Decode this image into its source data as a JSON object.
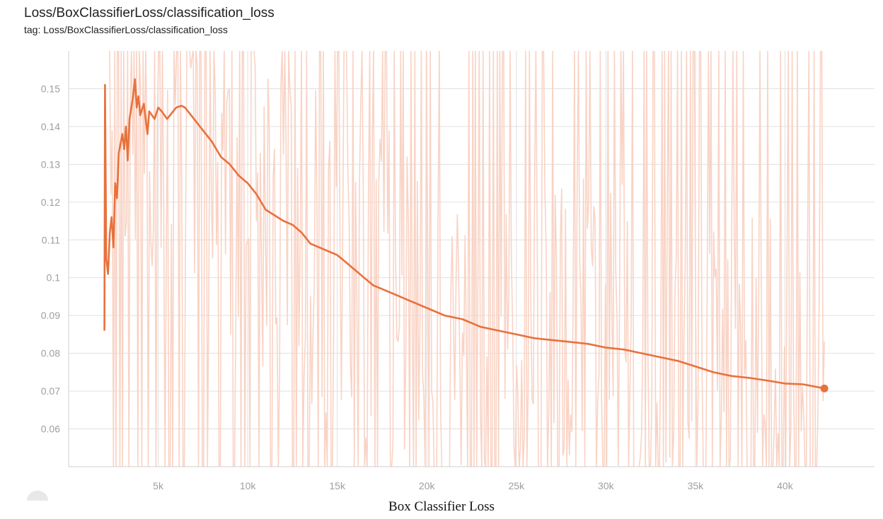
{
  "header": {
    "title": "Loss/BoxClassifierLoss/classification_loss",
    "tag": "tag: Loss/BoxClassifierLoss/classification_loss"
  },
  "caption": "Box Classifier Loss",
  "colors": {
    "smoothed": "#e8713c",
    "raw": "#f9d3c5",
    "grid": "#e0e0e0",
    "tick_text": "#9e9e9e"
  },
  "chart_data": {
    "type": "line",
    "title": "Loss/BoxClassifierLoss/classification_loss",
    "xlabel": "",
    "ylabel": "",
    "xlim": [
      0,
      45000
    ],
    "ylim": [
      0.05,
      0.16
    ],
    "grid": true,
    "x_ticks": [
      5000,
      10000,
      15000,
      20000,
      25000,
      30000,
      35000,
      40000
    ],
    "x_tick_labels": [
      "5k",
      "10k",
      "15k",
      "20k",
      "25k",
      "30k",
      "35k",
      "40k"
    ],
    "y_ticks": [
      0.06,
      0.07,
      0.08,
      0.09,
      0.1,
      0.11,
      0.12,
      0.13,
      0.14,
      0.15
    ],
    "y_tick_labels": [
      "0.06",
      "0.07",
      "0.08",
      "0.09",
      "0.1",
      "0.11",
      "0.12",
      "0.13",
      "0.14",
      "0.15"
    ],
    "series": [
      {
        "kind": "smoothed",
        "points": [
          [
            2000,
            0.086
          ],
          [
            2030,
            0.151
          ],
          [
            2100,
            0.105
          ],
          [
            2200,
            0.101
          ],
          [
            2300,
            0.112
          ],
          [
            2400,
            0.116
          ],
          [
            2500,
            0.108
          ],
          [
            2600,
            0.125
          ],
          [
            2700,
            0.121
          ],
          [
            2800,
            0.133
          ],
          [
            3000,
            0.138
          ],
          [
            3100,
            0.134
          ],
          [
            3200,
            0.14
          ],
          [
            3300,
            0.131
          ],
          [
            3400,
            0.142
          ],
          [
            3600,
            0.148
          ],
          [
            3700,
            0.1525
          ],
          [
            3800,
            0.145
          ],
          [
            3900,
            0.148
          ],
          [
            4000,
            0.143
          ],
          [
            4200,
            0.146
          ],
          [
            4400,
            0.138
          ],
          [
            4500,
            0.144
          ],
          [
            4800,
            0.142
          ],
          [
            5000,
            0.145
          ],
          [
            5200,
            0.144
          ],
          [
            5500,
            0.142
          ],
          [
            6000,
            0.145
          ],
          [
            6300,
            0.1455
          ],
          [
            6500,
            0.145
          ],
          [
            7000,
            0.142
          ],
          [
            7500,
            0.139
          ],
          [
            8000,
            0.136
          ],
          [
            8500,
            0.132
          ],
          [
            9000,
            0.13
          ],
          [
            9500,
            0.127
          ],
          [
            10000,
            0.125
          ],
          [
            10500,
            0.122
          ],
          [
            11000,
            0.118
          ],
          [
            12000,
            0.115
          ],
          [
            12500,
            0.114
          ],
          [
            13000,
            0.112
          ],
          [
            13500,
            0.109
          ],
          [
            14000,
            0.108
          ],
          [
            15000,
            0.106
          ],
          [
            15500,
            0.104
          ],
          [
            16000,
            0.102
          ],
          [
            16500,
            0.1
          ],
          [
            17000,
            0.098
          ],
          [
            18000,
            0.096
          ],
          [
            19000,
            0.094
          ],
          [
            20000,
            0.092
          ],
          [
            21000,
            0.09
          ],
          [
            22000,
            0.089
          ],
          [
            23000,
            0.087
          ],
          [
            24000,
            0.086
          ],
          [
            25000,
            0.085
          ],
          [
            26000,
            0.084
          ],
          [
            27000,
            0.0835
          ],
          [
            28000,
            0.083
          ],
          [
            29000,
            0.0825
          ],
          [
            30000,
            0.0815
          ],
          [
            31000,
            0.081
          ],
          [
            32000,
            0.08
          ],
          [
            33000,
            0.079
          ],
          [
            34000,
            0.078
          ],
          [
            35000,
            0.0765
          ],
          [
            36000,
            0.075
          ],
          [
            37000,
            0.074
          ],
          [
            38000,
            0.0735
          ],
          [
            39000,
            0.0728
          ],
          [
            40000,
            0.072
          ],
          [
            41000,
            0.0718
          ],
          [
            42200,
            0.0707
          ]
        ]
      },
      {
        "kind": "raw",
        "x_range": [
          2000,
          42200
        ],
        "samples": 560
      }
    ]
  }
}
